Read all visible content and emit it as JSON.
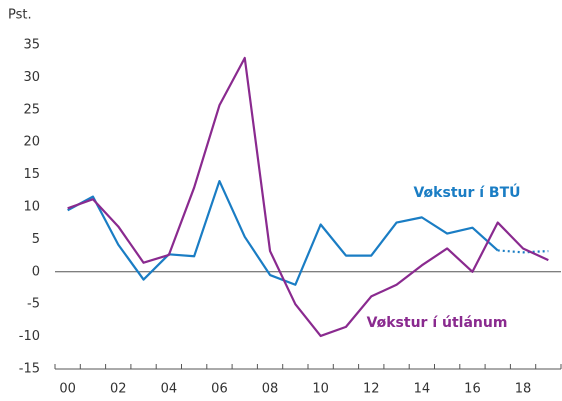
{
  "chart_data": {
    "type": "line",
    "y_label": "Pst.",
    "categories": [
      "00",
      null,
      "02",
      null,
      "04",
      null,
      "06",
      null,
      "08",
      null,
      "10",
      null,
      "12",
      null,
      "14",
      null,
      "16",
      null,
      "18",
      null
    ],
    "series": [
      {
        "name": "Vøkstur í BTÚ",
        "color": "#1a7dc4",
        "values": [
          9.5,
          11.6,
          4.2,
          -1.2,
          2.7,
          2.4,
          14,
          5.4,
          -0.5,
          -2,
          7.3,
          2.5,
          2.5,
          7.6,
          8.4,
          5.9,
          6.8,
          3.3,
          null,
          null
        ]
      },
      {
        "color": "#1a7dc4",
        "dashed": true,
        "values": [
          null,
          null,
          null,
          null,
          null,
          null,
          null,
          null,
          null,
          null,
          null,
          null,
          null,
          null,
          null,
          null,
          null,
          3.3,
          3.0,
          3.2
        ]
      },
      {
        "name": "Vøkstur í útlánum",
        "color": "#8a2a8f",
        "values": [
          9.8,
          11.2,
          7,
          1.4,
          2.6,
          13,
          25.7,
          33,
          3.2,
          -5,
          -9.9,
          -8.5,
          -3.8,
          -2,
          1,
          3.6,
          0,
          7.6,
          3.6,
          1.8
        ]
      }
    ],
    "ylim": [
      -15,
      35
    ],
    "yticks": [
      -15,
      -10,
      -5,
      0,
      5,
      10,
      15,
      20,
      25,
      30,
      35
    ]
  }
}
